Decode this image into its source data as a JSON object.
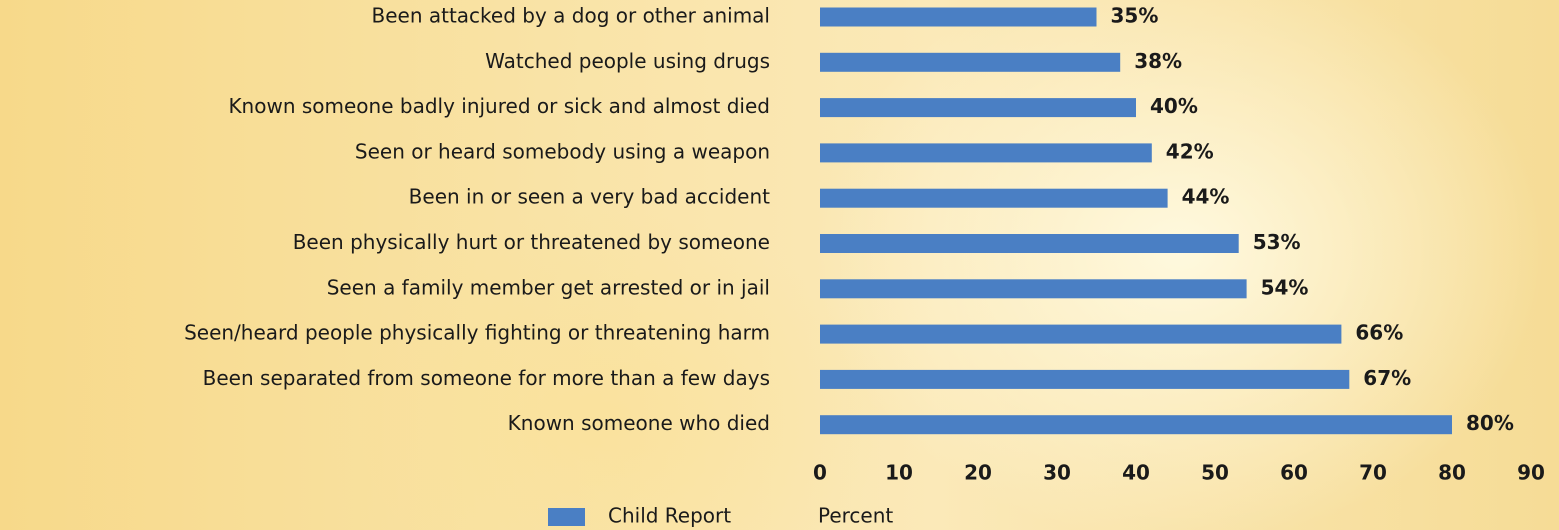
{
  "chart_data": {
    "type": "bar",
    "orientation": "horizontal",
    "categories": [
      "Been attacked by a dog or other animal",
      "Watched people using drugs",
      "Known someone badly injured or sick and almost died",
      "Seen or heard somebody using a weapon",
      "Been in or seen a very bad accident",
      "Been physically hurt or threatened by someone",
      "Seen a family member get arrested or in jail",
      "Seen/heard people physically fighting or threatening harm",
      "Been separated from someone for more than a few days",
      "Known someone who died"
    ],
    "series": [
      {
        "name": "Child Report",
        "color": "#4a7fc4",
        "values": [
          35,
          38,
          40,
          42,
          44,
          53,
          54,
          66,
          67,
          80
        ],
        "value_labels": [
          "35%",
          "38%",
          "40%",
          "42%",
          "44%",
          "53%",
          "54%",
          "66%",
          "67%",
          "80%"
        ]
      }
    ],
    "xlim": [
      0,
      90
    ],
    "xticks": [
      0,
      10,
      20,
      30,
      40,
      50,
      60,
      70,
      80,
      90
    ],
    "x_label": "Percent",
    "grid": false,
    "legend": "bottom"
  }
}
